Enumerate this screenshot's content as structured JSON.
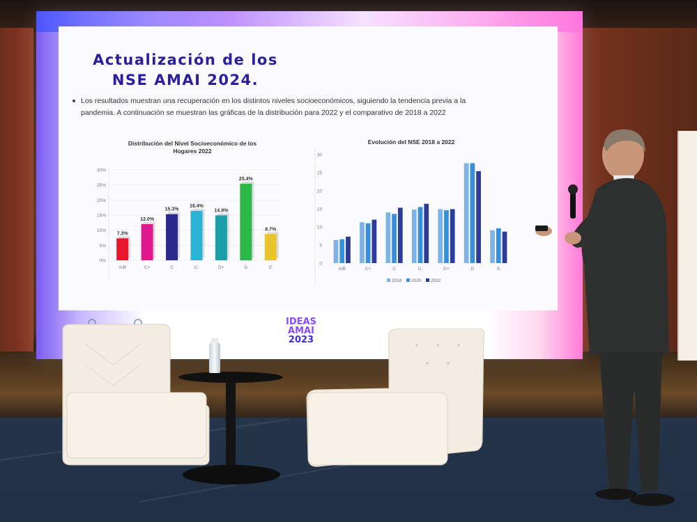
{
  "slide": {
    "title_line1": "Actualización de los",
    "title_line2": "NSE AMAI 2024.",
    "bullet_line1": "Los resultados muestran una recuperación en los distintos niveles socioeconómicos, siguiendo la tendencia previa a la",
    "bullet_line2": "pandemia. A continuación se muestran las gráficas de la distribución para 2022 y el comparativo de 2018 a 2022"
  },
  "event_logo": {
    "line1": "IDEAS",
    "line2": "AMAI",
    "line3": "2023"
  },
  "chart_data": [
    {
      "type": "bar",
      "title_line1": "Distribución del Nivel Socioeconómico de los",
      "title_line2": "Hogares 2022",
      "categories": [
        "A/B",
        "C+",
        "C",
        "C-",
        "D+",
        "D",
        "E"
      ],
      "values": [
        7.3,
        12.0,
        15.3,
        16.4,
        14.9,
        25.4,
        8.7
      ],
      "data_labels": [
        "7.3%",
        "12.0%",
        "15.3%",
        "16.4%",
        "14.9%",
        "25.4%",
        "8.7%"
      ],
      "ylim": [
        0,
        30
      ],
      "y_ticks": [
        "0%",
        "5%",
        "10%",
        "15%",
        "20%",
        "25%",
        "30%"
      ],
      "colors": [
        "#e8162c",
        "#e0178f",
        "#2b2a8c",
        "#2bb3d6",
        "#1aa0a8",
        "#2fb84a",
        "#e8c52a"
      ],
      "grid": true,
      "legend": "none"
    },
    {
      "type": "bar",
      "title": "Evolución del NSE 2018  a 2022",
      "categories": [
        "A/B",
        "C+",
        "C",
        "C-",
        "D+",
        "D",
        "E"
      ],
      "series": [
        {
          "name": "2018",
          "values": [
            6.4,
            11.3,
            14.0,
            14.8,
            14.9,
            27.6,
            9.1
          ],
          "color": "#7fb3e6"
        },
        {
          "name": "2020",
          "values": [
            6.6,
            11.0,
            13.6,
            15.5,
            14.6,
            27.6,
            9.6
          ],
          "color": "#3a8fd9"
        },
        {
          "name": "2022",
          "values": [
            7.3,
            12.0,
            15.3,
            16.4,
            14.9,
            25.4,
            8.7
          ],
          "color": "#2b3c9a"
        }
      ],
      "ylim": [
        0,
        30
      ],
      "y_ticks": [
        "0",
        "5",
        "10",
        "15",
        "20",
        "25",
        "30"
      ],
      "grid": true,
      "legend": "bottom"
    }
  ]
}
